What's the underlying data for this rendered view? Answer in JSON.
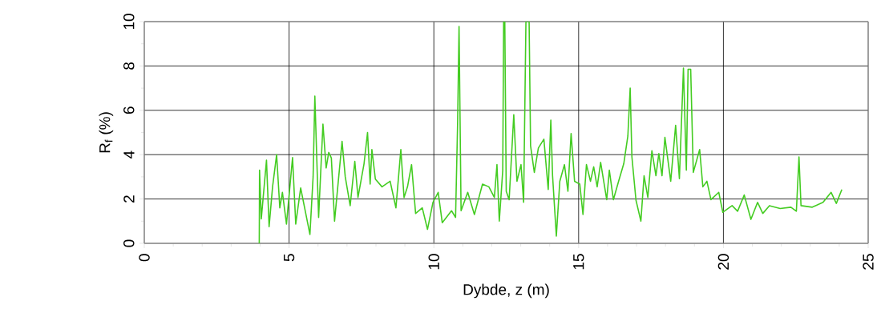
{
  "chart_data": {
    "type": "line",
    "xlabel": "Dybde, z (m)",
    "ylabel": "R$_{f}$ (%)",
    "xlim": [
      0,
      25
    ],
    "xticks": [
      0,
      5,
      10,
      15,
      20,
      25
    ],
    "ylim": [
      0,
      10
    ],
    "yticks": [
      0,
      2,
      4,
      6,
      8,
      10
    ],
    "grid": true,
    "marker": "none",
    "line_style": "solid",
    "series": [
      {
        "color": "#44cc22",
        "x": [
          3.97,
          3.98,
          4.04,
          4.22,
          4.31,
          4.43,
          4.57,
          4.68,
          4.77,
          4.91,
          5.12,
          5.23,
          5.4,
          5.72,
          5.83,
          5.89,
          6.02,
          6.17,
          6.28,
          6.37,
          6.46,
          6.57,
          6.83,
          6.94,
          7.11,
          7.27,
          7.38,
          7.59,
          7.71,
          7.8,
          7.86,
          7.98,
          8.21,
          8.49,
          8.69,
          8.86,
          8.97,
          9.09,
          9.23,
          9.37,
          9.6,
          9.78,
          9.97,
          10.15,
          10.29,
          10.61,
          10.75,
          10.82,
          10.87,
          10.94,
          11.17,
          11.4,
          11.68,
          11.9,
          12.09,
          12.18,
          12.26,
          12.38,
          12.41,
          12.45,
          12.5,
          12.6,
          12.76,
          12.87,
          13.01,
          13.1,
          13.18,
          13.29,
          13.34,
          13.47,
          13.61,
          13.8,
          13.95,
          14.04,
          14.1,
          14.23,
          14.35,
          14.51,
          14.63,
          14.74,
          14.86,
          15.04,
          15.15,
          15.27,
          15.41,
          15.52,
          15.64,
          15.76,
          15.97,
          16.06,
          16.2,
          16.38,
          16.56,
          16.7,
          16.78,
          16.84,
          16.98,
          17.15,
          17.26,
          17.39,
          17.53,
          17.67,
          17.77,
          17.88,
          17.98,
          18.18,
          18.35,
          18.48,
          18.62,
          18.72,
          18.78,
          18.87,
          18.96,
          19.18,
          19.29,
          19.43,
          19.57,
          19.84,
          19.98,
          20.3,
          20.49,
          20.72,
          20.95,
          21.18,
          21.36,
          21.59,
          21.96,
          22.33,
          22.52,
          22.61,
          22.68,
          23.07,
          23.44,
          23.72,
          23.9,
          24.09
        ],
        "values": [
          0,
          3.3,
          1.1,
          3.75,
          0.75,
          2.55,
          4.0,
          1.6,
          2.3,
          0.87,
          3.87,
          0.87,
          2.5,
          0.4,
          3.0,
          6.64,
          1.17,
          5.38,
          3.4,
          4.1,
          3.85,
          1.0,
          4.6,
          3.0,
          1.7,
          3.7,
          2.07,
          3.6,
          5.0,
          2.67,
          4.23,
          2.9,
          2.55,
          2.8,
          1.6,
          4.23,
          2.07,
          2.55,
          3.55,
          1.35,
          1.6,
          0.63,
          1.85,
          2.3,
          0.93,
          1.47,
          1.17,
          5.4,
          9.78,
          1.47,
          2.3,
          1.3,
          2.67,
          2.55,
          2.07,
          3.55,
          1.0,
          3.3,
          10,
          10,
          2.35,
          1.97,
          5.8,
          2.8,
          3.55,
          1.85,
          10,
          10,
          4.4,
          3.2,
          4.3,
          4.7,
          2.43,
          5.56,
          3.05,
          0.33,
          2.8,
          3.55,
          2.35,
          4.95,
          2.8,
          2.67,
          1.3,
          3.55,
          2.8,
          3.45,
          2.55,
          3.65,
          1.97,
          3.3,
          1.97,
          2.8,
          3.6,
          4.84,
          7.0,
          3.9,
          1.95,
          1.0,
          3.05,
          2.07,
          4.18,
          3.05,
          4.05,
          3.05,
          4.78,
          2.8,
          5.32,
          2.92,
          7.9,
          3.3,
          7.85,
          7.85,
          3.2,
          4.23,
          2.55,
          2.8,
          1.97,
          2.3,
          1.4,
          1.7,
          1.45,
          2.18,
          1.08,
          1.85,
          1.35,
          1.7,
          1.57,
          1.63,
          1.45,
          3.9,
          1.7,
          1.63,
          1.85,
          2.3,
          1.8,
          2.43
        ]
      }
    ]
  }
}
